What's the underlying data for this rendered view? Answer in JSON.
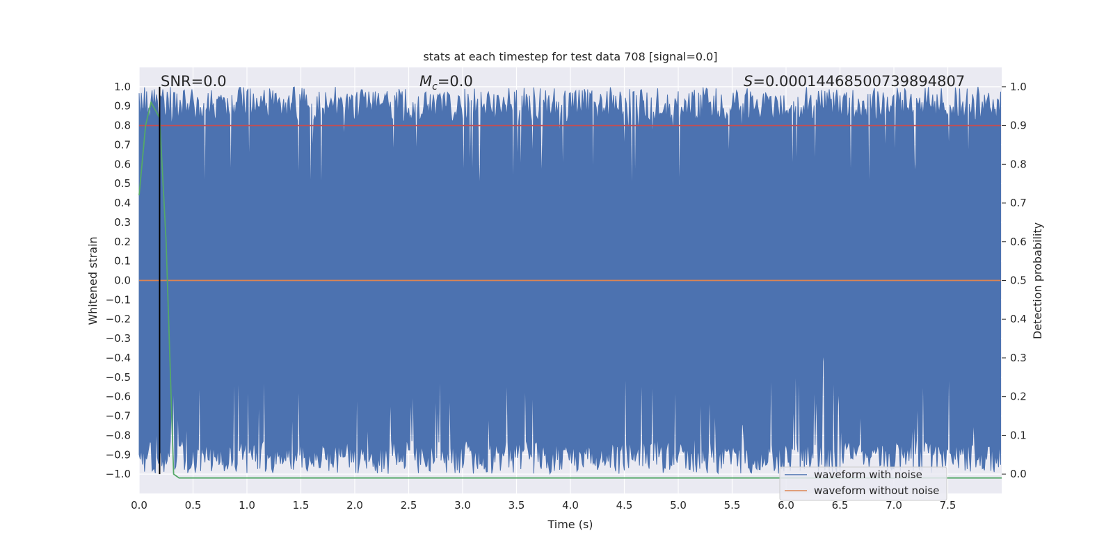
{
  "chart_data": {
    "type": "line",
    "title": "stats at each timestep for test data 708 [signal=0.0]",
    "xlabel": "Time (s)",
    "ylabel": "Whitened strain",
    "y2label": "Detection probability",
    "xlim": [
      0.0,
      8.0
    ],
    "ylim": [
      -1.1,
      1.1
    ],
    "y2lim": [
      -0.05,
      1.05
    ],
    "xticks": [
      0.0,
      0.5,
      1.0,
      1.5,
      2.0,
      2.5,
      3.0,
      3.5,
      4.0,
      4.5,
      5.0,
      5.5,
      6.0,
      6.5,
      7.0,
      7.5
    ],
    "xtick_labels": [
      "0.0",
      "0.5",
      "1.0",
      "1.5",
      "2.0",
      "2.5",
      "3.0",
      "3.5",
      "4.0",
      "4.5",
      "5.0",
      "5.5",
      "6.0",
      "6.5",
      "7.0",
      "7.5"
    ],
    "yticks": [
      1.0,
      0.9,
      0.8,
      0.7,
      0.6,
      0.5,
      0.4,
      0.3,
      0.2,
      0.1,
      0.0,
      -0.1,
      -0.2,
      -0.3,
      -0.4,
      -0.5,
      -0.6,
      -0.7,
      -0.8,
      -0.9,
      -1.0
    ],
    "ytick_labels": [
      "1.0",
      "0.9",
      "0.8",
      "0.7",
      "0.6",
      "0.5",
      "0.4",
      "0.3",
      "0.2",
      "0.1",
      "0.0",
      "−0.1",
      "−0.2",
      "−0.3",
      "−0.4",
      "−0.5",
      "−0.6",
      "−0.7",
      "−0.8",
      "−0.9",
      "−1.0"
    ],
    "y2ticks": [
      1.0,
      0.9,
      0.8,
      0.7,
      0.6,
      0.5,
      0.4,
      0.3,
      0.2,
      0.1,
      0.0
    ],
    "y2tick_labels": [
      "1.0",
      "0.9",
      "0.8",
      "0.7",
      "0.6",
      "0.5",
      "0.4",
      "0.3",
      "0.2",
      "0.1",
      "0.0"
    ],
    "grid": true,
    "legend_position": "lower-right",
    "series": [
      {
        "name": "waveform with noise",
        "axis": "left",
        "color": "#4c72b0",
        "description_values": {
          "upper_envelope_range": [
            0.3,
            1.0
          ],
          "lower_envelope_range": [
            -1.0,
            -0.3
          ],
          "sample_count": 800
        },
        "dense_noise": true
      },
      {
        "name": "waveform without noise",
        "axis": "left",
        "color": "#dd8452",
        "x": [
          0.0,
          7.99
        ],
        "y": [
          0.0,
          0.0
        ]
      },
      {
        "axis": "right",
        "color": "#c44e52",
        "x": [
          0.0,
          7.99
        ],
        "y": [
          0.9,
          0.9
        ]
      },
      {
        "axis": "right",
        "color": "#55a868",
        "x": [
          0.0,
          0.06,
          0.11,
          0.19,
          0.25,
          0.32,
          0.37,
          0.5,
          8.0
        ],
        "y": [
          0.72,
          0.9,
          0.96,
          0.92,
          0.6,
          0.0,
          -0.01,
          -0.01,
          -0.01
        ]
      }
    ],
    "vertical_markers": [
      {
        "x": 0.19,
        "y_range": [
          -1.0,
          1.0
        ],
        "color": "#000000"
      }
    ],
    "annotations": {
      "snr": "SNR=0.0",
      "mc_symbol": "M",
      "mc_subscript": "c",
      "mc_value": "=0.0",
      "s_symbol": "S",
      "s_value": "=0.00014468500739894807"
    },
    "legend": {
      "entries": [
        "waveform with noise",
        "waveform without noise"
      ]
    }
  }
}
